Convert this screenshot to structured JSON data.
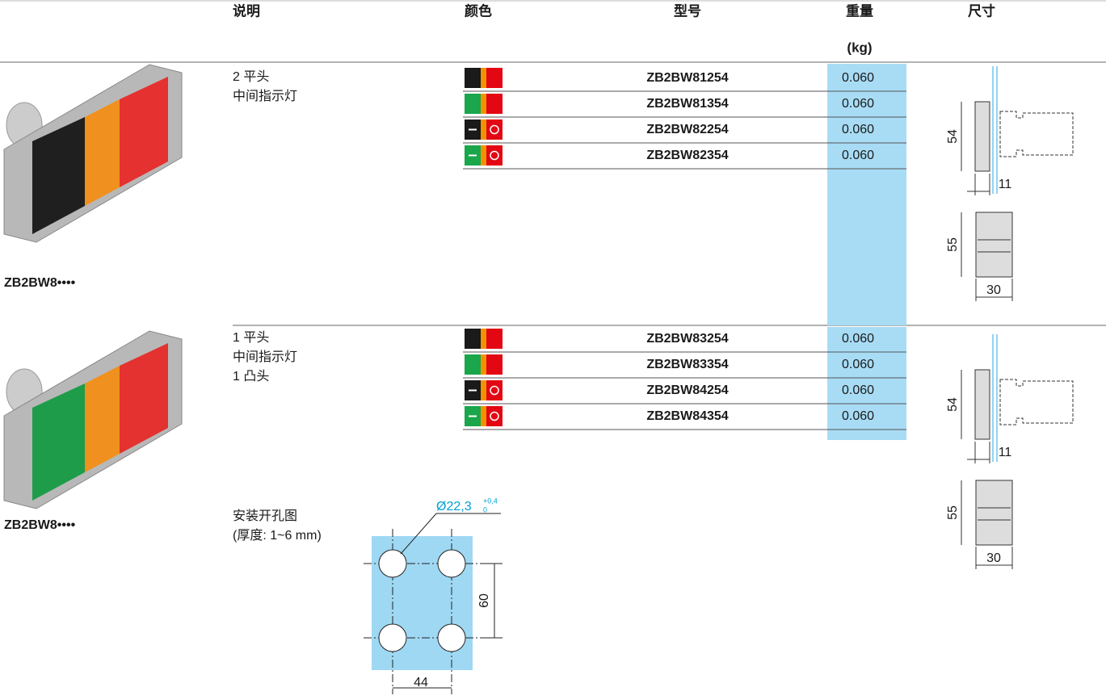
{
  "header": {
    "description": "说明",
    "color": "颜色",
    "model": "型号",
    "weight": "重量",
    "weight_unit": "(kg)",
    "dimensions": "尺寸"
  },
  "groups": [
    {
      "image_label": "ZB2BW8••••",
      "description": [
        "2 平头",
        "中间指示灯"
      ],
      "rows": [
        {
          "model": "ZB2BW81254",
          "weight": "0.060"
        },
        {
          "model": "ZB2BW81354",
          "weight": "0.060"
        },
        {
          "model": "ZB2BW82254",
          "weight": "0.060"
        },
        {
          "model": "ZB2BW82354",
          "weight": "0.060"
        }
      ],
      "dims": {
        "height": "54",
        "depth": "11",
        "front_height": "55",
        "front_width": "30"
      }
    },
    {
      "image_label": "ZB2BW8••••",
      "description": [
        "1 平头",
        "中间指示灯",
        "1 凸头"
      ],
      "rows": [
        {
          "model": "ZB2BW83254",
          "weight": "0.060"
        },
        {
          "model": "ZB2BW83354",
          "weight": "0.060"
        },
        {
          "model": "ZB2BW84254",
          "weight": "0.060"
        },
        {
          "model": "ZB2BW84354",
          "weight": "0.060"
        }
      ],
      "dims": {
        "height": "54",
        "depth": "11",
        "front_height": "55",
        "front_width": "30"
      }
    }
  ],
  "cutout": {
    "title": "安装开孔图",
    "note": "(厚度: 1~6 mm)",
    "diameter": "Ø22,3",
    "tol_upper": "+0,4",
    "tol_lower": "0",
    "spacing_v": "60",
    "spacing_h": "44"
  }
}
